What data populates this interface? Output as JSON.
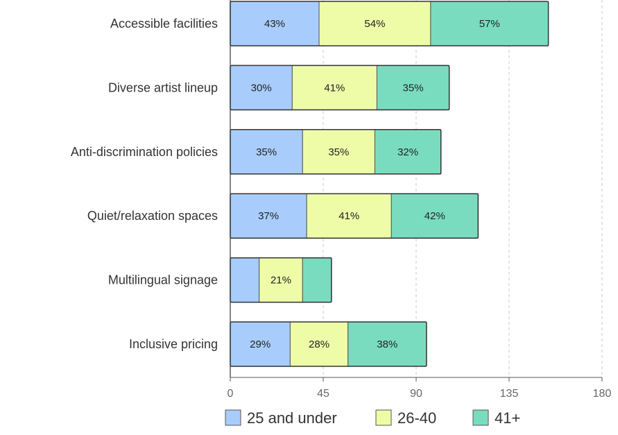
{
  "chart_data": {
    "type": "bar",
    "orientation": "horizontal",
    "stacked": true,
    "title": "",
    "xlabel": "",
    "ylabel": "",
    "xlim": [
      0,
      180
    ],
    "xticks": [
      0,
      45,
      90,
      135,
      180
    ],
    "grid": "vertical dashed",
    "legend_position": "bottom",
    "categories": [
      "Accessible facilities",
      "Diverse artist lineup",
      "Anti-discrimination policies",
      "Quiet/relaxation spaces",
      "Multilingual signage",
      "Inclusive pricing"
    ],
    "series": [
      {
        "name": "25 and under",
        "color": "#a8cdfc",
        "values": [
          43,
          30,
          35,
          37,
          14,
          29
        ]
      },
      {
        "name": "26-40",
        "color": "#eefca8",
        "values": [
          54,
          41,
          35,
          41,
          21,
          28
        ]
      },
      {
        "name": "41+",
        "color": "#7adcbe",
        "values": [
          57,
          35,
          32,
          42,
          14,
          38
        ]
      }
    ],
    "data_label_suffix": "%",
    "data_label_min": 20
  }
}
